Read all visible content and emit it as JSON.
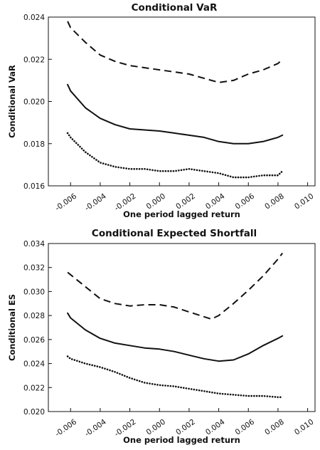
{
  "chart_data": [
    {
      "type": "line",
      "title": "Conditional VaR",
      "xlabel": "One period lagged return",
      "ylabel": "Conditional VaR",
      "xlim": [
        -0.0075,
        0.0105
      ],
      "ylim": [
        0.016,
        0.024
      ],
      "xticks": [
        "-0.006",
        "-0.004",
        "-0.002",
        "0.000",
        "0.002",
        "0.004",
        "0.006",
        "0.008",
        "0.010"
      ],
      "yticks": [
        "0.016",
        "0.018",
        "0.020",
        "0.022",
        "0.024"
      ],
      "grid": false,
      "series": [
        {
          "style": "dashed",
          "x": [
            -0.0062,
            -0.006,
            -0.005,
            -0.004,
            -0.003,
            -0.002,
            -0.001,
            0.0,
            0.001,
            0.002,
            0.003,
            0.004,
            0.005,
            0.006,
            0.007,
            0.008,
            0.0083
          ],
          "values": [
            0.0238,
            0.0235,
            0.0228,
            0.0222,
            0.0219,
            0.0217,
            0.0216,
            0.0215,
            0.0214,
            0.0213,
            0.0211,
            0.0209,
            0.021,
            0.0213,
            0.0215,
            0.0218,
            0.022
          ]
        },
        {
          "style": "solid",
          "x": [
            -0.0062,
            -0.006,
            -0.005,
            -0.004,
            -0.003,
            -0.002,
            -0.001,
            0.0,
            0.001,
            0.002,
            0.003,
            0.004,
            0.005,
            0.006,
            0.007,
            0.008,
            0.0083
          ],
          "values": [
            0.0208,
            0.0205,
            0.0197,
            0.0192,
            0.0189,
            0.0187,
            0.01865,
            0.0186,
            0.0185,
            0.0184,
            0.0183,
            0.0181,
            0.018,
            0.018,
            0.0181,
            0.0183,
            0.0184
          ]
        },
        {
          "style": "dotted",
          "x": [
            -0.0062,
            -0.006,
            -0.005,
            -0.004,
            -0.003,
            -0.002,
            -0.001,
            0.0,
            0.001,
            0.002,
            0.003,
            0.004,
            0.005,
            0.006,
            0.007,
            0.008,
            0.0083
          ],
          "values": [
            0.0185,
            0.0183,
            0.0176,
            0.0171,
            0.0169,
            0.0168,
            0.0168,
            0.0167,
            0.0167,
            0.0168,
            0.0167,
            0.0166,
            0.0164,
            0.0164,
            0.0165,
            0.0165,
            0.0167
          ]
        }
      ]
    },
    {
      "type": "line",
      "title": "Conditional Expected Shortfall",
      "xlabel": "One period lagged return",
      "ylabel": "Conditional ES",
      "xlim": [
        -0.0075,
        0.0105
      ],
      "ylim": [
        0.02,
        0.034
      ],
      "xticks": [
        "-0.006",
        "-0.004",
        "-0.002",
        "0.000",
        "0.002",
        "0.004",
        "0.006",
        "0.008",
        "0.010"
      ],
      "yticks": [
        "0.020",
        "0.022",
        "0.024",
        "0.026",
        "0.028",
        "0.030",
        "0.032",
        "0.034"
      ],
      "grid": false,
      "series": [
        {
          "style": "dashed",
          "x": [
            -0.0062,
            -0.006,
            -0.005,
            -0.004,
            -0.003,
            -0.002,
            -0.001,
            0.0,
            0.001,
            0.002,
            0.003,
            0.0035,
            0.004,
            0.005,
            0.006,
            0.007,
            0.008,
            0.0083
          ],
          "values": [
            0.0316,
            0.0314,
            0.0304,
            0.0294,
            0.029,
            0.0288,
            0.0289,
            0.0289,
            0.0287,
            0.0283,
            0.0279,
            0.0277,
            0.028,
            0.029,
            0.0301,
            0.0313,
            0.0327,
            0.0332
          ]
        },
        {
          "style": "solid",
          "x": [
            -0.0062,
            -0.006,
            -0.005,
            -0.004,
            -0.003,
            -0.002,
            -0.001,
            0.0,
            0.001,
            0.002,
            0.003,
            0.004,
            0.005,
            0.006,
            0.007,
            0.008,
            0.0083
          ],
          "values": [
            0.0282,
            0.0278,
            0.0268,
            0.0261,
            0.0257,
            0.0255,
            0.0253,
            0.0252,
            0.025,
            0.0247,
            0.0244,
            0.0242,
            0.0243,
            0.0248,
            0.0255,
            0.0261,
            0.0263
          ]
        },
        {
          "style": "dotted",
          "x": [
            -0.0062,
            -0.006,
            -0.005,
            -0.004,
            -0.003,
            -0.002,
            -0.001,
            0.0,
            0.001,
            0.002,
            0.003,
            0.004,
            0.005,
            0.006,
            0.007,
            0.008,
            0.0083
          ],
          "values": [
            0.0246,
            0.0244,
            0.024,
            0.0237,
            0.0233,
            0.0228,
            0.0224,
            0.0222,
            0.0221,
            0.0219,
            0.0217,
            0.0215,
            0.0214,
            0.0213,
            0.0213,
            0.0212,
            0.0212
          ]
        }
      ]
    }
  ]
}
